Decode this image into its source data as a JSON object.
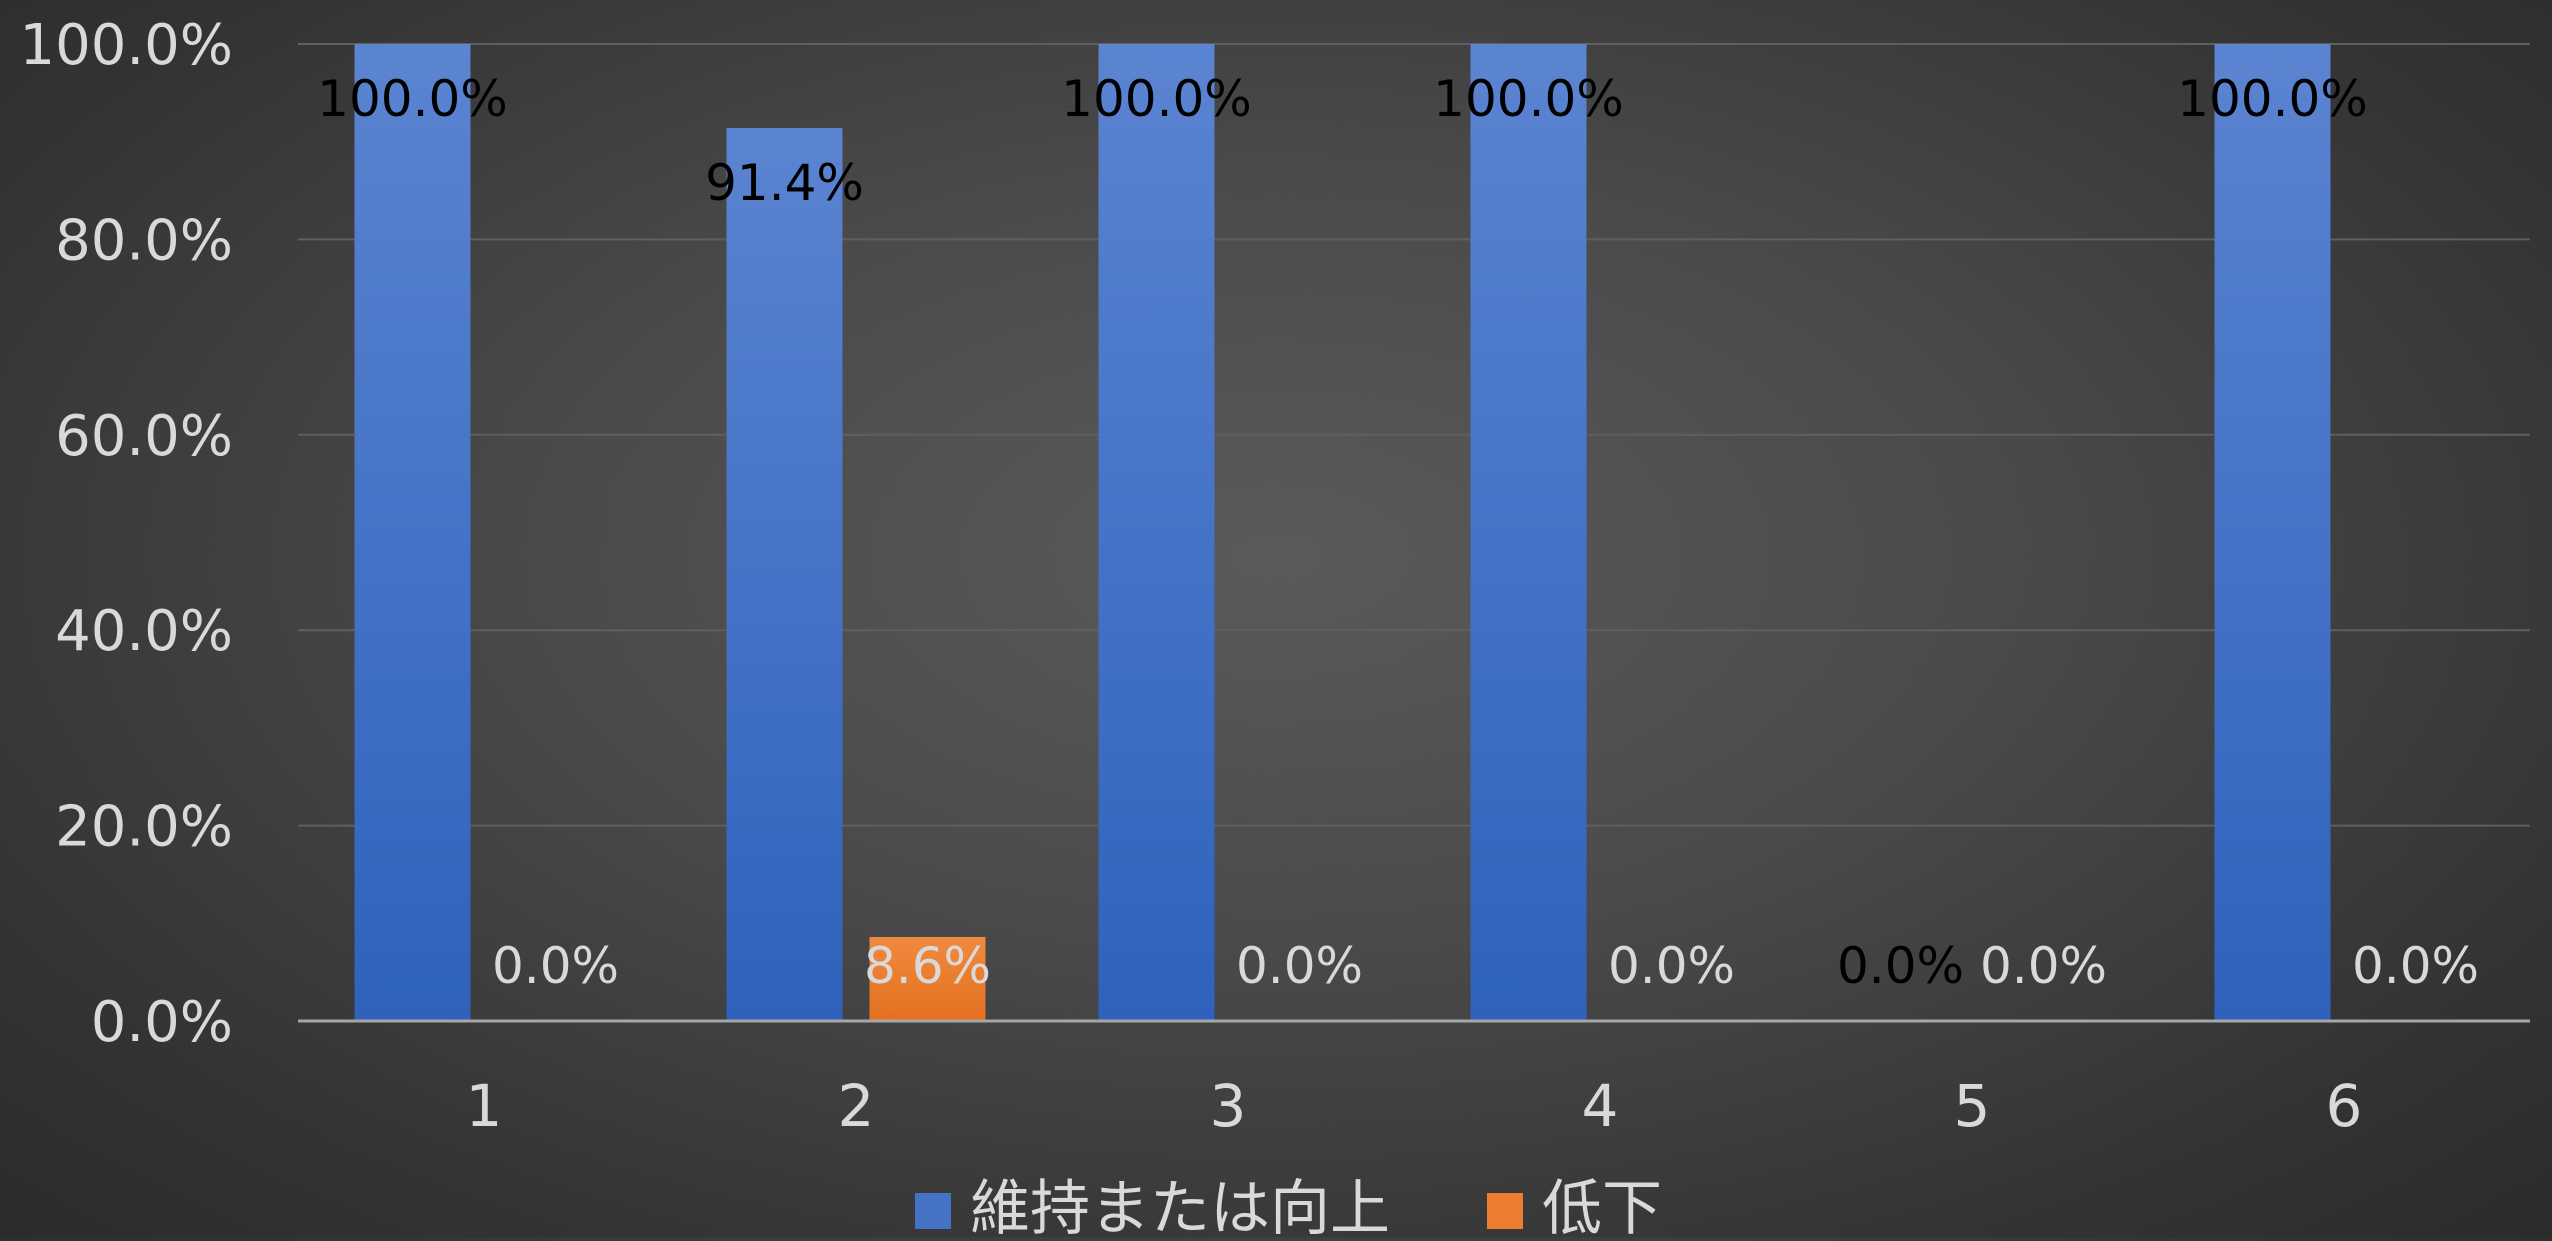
{
  "chart_data": {
    "type": "bar",
    "categories": [
      "1",
      "2",
      "3",
      "4",
      "5",
      "6"
    ],
    "series": [
      {
        "name": "維持または向上",
        "color": "#4472c4",
        "values": [
          100.0,
          91.4,
          100.0,
          100.0,
          0.0,
          100.0
        ],
        "labels": [
          "100.0%",
          "91.4%",
          "100.0%",
          "100.0%",
          "0.0%",
          "100.0%"
        ]
      },
      {
        "name": "低下",
        "color": "#ed7d31",
        "values": [
          0.0,
          8.6,
          0.0,
          0.0,
          0.0,
          0.0
        ],
        "labels": [
          "0.0%",
          "8.6%",
          "0.0%",
          "0.0%",
          "0.0%",
          "0.0%"
        ]
      }
    ],
    "yticks": [
      "0.0%",
      "20.0%",
      "40.0%",
      "60.0%",
      "80.0%",
      "100.0%"
    ],
    "ylim": [
      0,
      100
    ],
    "grid": true,
    "legend": "bottom",
    "title": "",
    "xlabel": "",
    "ylabel": ""
  }
}
